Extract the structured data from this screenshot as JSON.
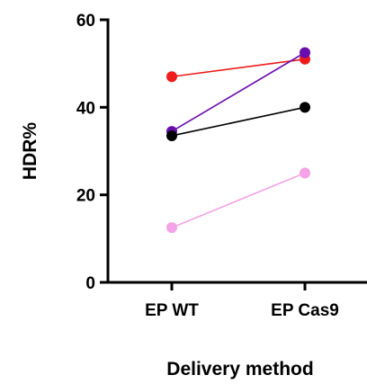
{
  "chart_data": {
    "type": "line",
    "title": "",
    "xlabel": "Delivery method",
    "ylabel": "HDR%",
    "categories": [
      "EP WT",
      "EP Cas9"
    ],
    "ylim": [
      0,
      60
    ],
    "yticks": [
      0,
      20,
      40,
      60
    ],
    "grid": false,
    "legend": "none",
    "series": [
      {
        "color": "#ee1c1c",
        "values": [
          47,
          51
        ]
      },
      {
        "color": "#6a0dad",
        "values": [
          34.5,
          52.5
        ]
      },
      {
        "color": "#000000",
        "values": [
          33.5,
          40
        ]
      },
      {
        "color": "#f4a3e6",
        "values": [
          12.5,
          25
        ]
      }
    ]
  }
}
